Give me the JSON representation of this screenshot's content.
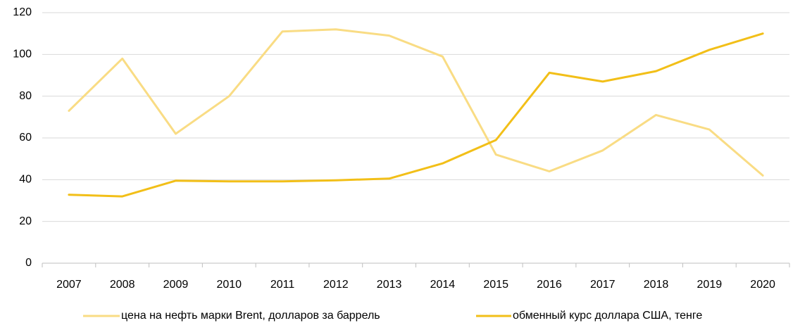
{
  "chart_data": {
    "type": "line",
    "title": "",
    "xlabel": "",
    "ylabel": "",
    "categories": [
      "2007",
      "2008",
      "2009",
      "2010",
      "2011",
      "2012",
      "2013",
      "2014",
      "2015",
      "2016",
      "2017",
      "2018",
      "2019",
      "2020"
    ],
    "ylim": [
      0,
      120
    ],
    "yticks": [
      0,
      20,
      40,
      60,
      80,
      100,
      120
    ],
    "grid": true,
    "legend_position": "bottom",
    "series": [
      {
        "name": "цена на нефть марки Brent, долларов за баррель",
        "color": "#f9dc84",
        "values": [
          73,
          98,
          62,
          80,
          111,
          112,
          109,
          99,
          52,
          44,
          54,
          71,
          64,
          42
        ]
      },
      {
        "name": "обменный курс доллара США, тенге",
        "color": "#f2bf18",
        "values": [
          32.8,
          32,
          39.5,
          39.2,
          39.2,
          39.7,
          40.5,
          47.8,
          59,
          91.2,
          87,
          92,
          102.2,
          110
        ]
      }
    ]
  }
}
